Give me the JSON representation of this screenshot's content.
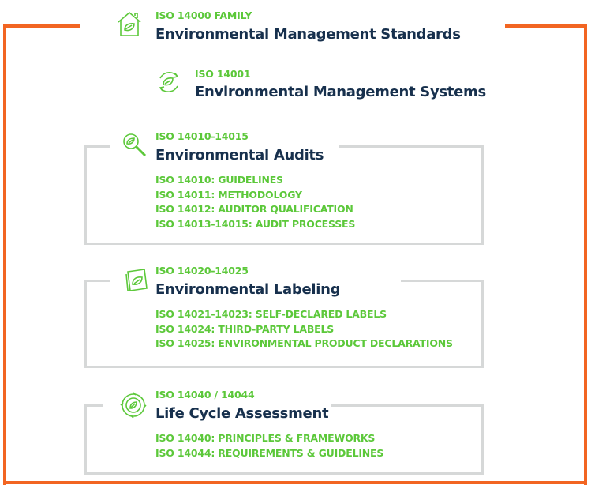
{
  "colors": {
    "accent_green": "#5cc83a",
    "title_navy": "#17304d",
    "frame_orange": "#f26522",
    "box_gray": "#d6d8d8"
  },
  "header": {
    "label": "ISO 14000 FAMILY",
    "title": "Environmental Management Standards",
    "icon": "house-leaf-icon"
  },
  "core": {
    "label": "ISO 14001",
    "title": "Environmental Management Systems",
    "icon": "leaf-cycle-icon"
  },
  "sections": [
    {
      "label": "ISO 14010-14015",
      "title": "Environmental Audits",
      "icon": "magnifier-leaf-icon",
      "items": [
        "ISO 14010: GUIDELINES",
        "ISO 14011: METHODOLOGY",
        "ISO 14012: AUDITOR QUALIFICATION",
        "ISO 14013-14015: AUDIT PROCESSES"
      ]
    },
    {
      "label": "ISO 14020-14025",
      "title": "Environmental Labeling",
      "icon": "label-leaf-icon",
      "items": [
        "ISO 14021-14023: SELF-DECLARED LABELS",
        "ISO 14024: THIRD-PARTY LABELS",
        "ISO 14025: ENVIRONMENTAL PRODUCT DECLARATIONS"
      ]
    },
    {
      "label": "ISO 14040 / 14044",
      "title": "Life Cycle Assessment",
      "icon": "lifecycle-leaf-icon",
      "items": [
        "ISO 14040: PRINCIPLES & FRAMEWORKS",
        "ISO 14044: REQUIREMENTS & GUIDELINES"
      ]
    }
  ]
}
